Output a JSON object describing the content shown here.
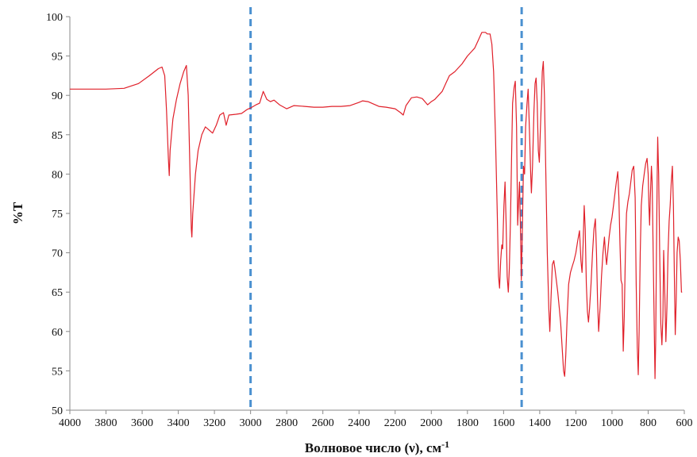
{
  "chart_data": {
    "type": "line",
    "title": "",
    "xlabel": "Волновое число (ν), см",
    "xlabel_sup": "-1",
    "ylabel": "%T",
    "xlim": [
      4000,
      600
    ],
    "ylim": [
      50,
      100
    ],
    "x_ticks": [
      "4000",
      "3800",
      "3600",
      "3400",
      "3200",
      "3000",
      "2800",
      "2600",
      "2400",
      "2200",
      "2000",
      "1800",
      "1600",
      "1400",
      "1200",
      "1000",
      "800",
      "600"
    ],
    "y_ticks": [
      "50",
      "55",
      "60",
      "65",
      "70",
      "75",
      "80",
      "85",
      "90",
      "95",
      "100"
    ],
    "grid": false,
    "legend": "none",
    "reference_lines": [
      {
        "x": 3000,
        "style": "dashed",
        "color": "#4a90d0"
      },
      {
        "x": 1500,
        "style": "dashed",
        "color": "#4a90d0"
      }
    ],
    "series": [
      {
        "color": "#e0202a",
        "points": [
          [
            4000,
            90.8
          ],
          [
            3900,
            90.8
          ],
          [
            3800,
            90.8
          ],
          [
            3700,
            90.9
          ],
          [
            3620,
            91.5
          ],
          [
            3560,
            92.5
          ],
          [
            3510,
            93.4
          ],
          [
            3490,
            93.6
          ],
          [
            3475,
            92.5
          ],
          [
            3465,
            88
          ],
          [
            3455,
            82
          ],
          [
            3450,
            79.8
          ],
          [
            3445,
            83
          ],
          [
            3430,
            87
          ],
          [
            3410,
            89.5
          ],
          [
            3390,
            91.5
          ],
          [
            3370,
            93
          ],
          [
            3355,
            93.8
          ],
          [
            3345,
            90
          ],
          [
            3335,
            80
          ],
          [
            3328,
            73
          ],
          [
            3325,
            72
          ],
          [
            3320,
            75
          ],
          [
            3305,
            80
          ],
          [
            3290,
            83
          ],
          [
            3270,
            85
          ],
          [
            3250,
            86
          ],
          [
            3230,
            85.6
          ],
          [
            3210,
            85.2
          ],
          [
            3190,
            86.2
          ],
          [
            3170,
            87.5
          ],
          [
            3150,
            87.8
          ],
          [
            3135,
            86.2
          ],
          [
            3120,
            87.5
          ],
          [
            3080,
            87.6
          ],
          [
            3050,
            87.7
          ],
          [
            3020,
            88.2
          ],
          [
            3000,
            88.4
          ],
          [
            2970,
            88.8
          ],
          [
            2950,
            89
          ],
          [
            2930,
            90.5
          ],
          [
            2910,
            89.5
          ],
          [
            2890,
            89.2
          ],
          [
            2870,
            89.4
          ],
          [
            2840,
            88.8
          ],
          [
            2800,
            88.3
          ],
          [
            2760,
            88.7
          ],
          [
            2700,
            88.6
          ],
          [
            2650,
            88.5
          ],
          [
            2600,
            88.5
          ],
          [
            2550,
            88.6
          ],
          [
            2500,
            88.6
          ],
          [
            2450,
            88.7
          ],
          [
            2400,
            89.1
          ],
          [
            2380,
            89.3
          ],
          [
            2350,
            89.2
          ],
          [
            2320,
            88.9
          ],
          [
            2290,
            88.6
          ],
          [
            2250,
            88.5
          ],
          [
            2200,
            88.3
          ],
          [
            2170,
            87.8
          ],
          [
            2155,
            87.5
          ],
          [
            2140,
            88.7
          ],
          [
            2110,
            89.7
          ],
          [
            2080,
            89.8
          ],
          [
            2050,
            89.6
          ],
          [
            2020,
            88.8
          ],
          [
            2000,
            89.2
          ],
          [
            1980,
            89.5
          ],
          [
            1960,
            90
          ],
          [
            1940,
            90.5
          ],
          [
            1920,
            91.5
          ],
          [
            1900,
            92.5
          ],
          [
            1870,
            93
          ],
          [
            1850,
            93.5
          ],
          [
            1830,
            94
          ],
          [
            1800,
            95
          ],
          [
            1780,
            95.5
          ],
          [
            1760,
            96
          ],
          [
            1740,
            97
          ],
          [
            1720,
            98
          ],
          [
            1700,
            98
          ],
          [
            1690,
            97.8
          ],
          [
            1675,
            97.8
          ],
          [
            1665,
            96.5
          ],
          [
            1655,
            93
          ],
          [
            1645,
            85
          ],
          [
            1635,
            75
          ],
          [
            1628,
            67
          ],
          [
            1622,
            65.5
          ],
          [
            1616,
            69
          ],
          [
            1610,
            71
          ],
          [
            1605,
            70.5
          ],
          [
            1598,
            76
          ],
          [
            1592,
            79
          ],
          [
            1586,
            74
          ],
          [
            1580,
            67
          ],
          [
            1574,
            65
          ],
          [
            1568,
            68
          ],
          [
            1562,
            74
          ],
          [
            1556,
            82
          ],
          [
            1550,
            89
          ],
          [
            1542,
            91
          ],
          [
            1535,
            91.8
          ],
          [
            1528,
            86
          ],
          [
            1522,
            73.5
          ],
          [
            1516,
            77
          ],
          [
            1512,
            79
          ],
          [
            1506,
            72
          ],
          [
            1502,
            66.5
          ],
          [
            1496,
            73
          ],
          [
            1490,
            81
          ],
          [
            1484,
            80
          ],
          [
            1478,
            86
          ],
          [
            1470,
            89
          ],
          [
            1464,
            90.8
          ],
          [
            1456,
            85
          ],
          [
            1450,
            80
          ],
          [
            1446,
            77.6
          ],
          [
            1440,
            81
          ],
          [
            1432,
            88
          ],
          [
            1426,
            91.5
          ],
          [
            1420,
            92.2
          ],
          [
            1414,
            89
          ],
          [
            1408,
            83
          ],
          [
            1402,
            81.5
          ],
          [
            1396,
            86
          ],
          [
            1390,
            90
          ],
          [
            1386,
            93
          ],
          [
            1380,
            94.3
          ],
          [
            1374,
            90
          ],
          [
            1366,
            80
          ],
          [
            1358,
            70
          ],
          [
            1350,
            63
          ],
          [
            1344,
            60
          ],
          [
            1338,
            64
          ],
          [
            1330,
            68.5
          ],
          [
            1322,
            69
          ],
          [
            1316,
            68
          ],
          [
            1308,
            66.5
          ],
          [
            1300,
            65
          ],
          [
            1292,
            63
          ],
          [
            1284,
            61
          ],
          [
            1276,
            58
          ],
          [
            1268,
            55
          ],
          [
            1262,
            54.3
          ],
          [
            1256,
            57
          ],
          [
            1248,
            62
          ],
          [
            1240,
            66
          ],
          [
            1230,
            67.5
          ],
          [
            1220,
            68.3
          ],
          [
            1210,
            69
          ],
          [
            1200,
            70
          ],
          [
            1190,
            71.5
          ],
          [
            1180,
            72.8
          ],
          [
            1172,
            69
          ],
          [
            1166,
            67.5
          ],
          [
            1160,
            71
          ],
          [
            1154,
            76
          ],
          [
            1148,
            73
          ],
          [
            1142,
            66
          ],
          [
            1136,
            62.5
          ],
          [
            1130,
            61.2
          ],
          [
            1124,
            63
          ],
          [
            1116,
            66
          ],
          [
            1108,
            70
          ],
          [
            1100,
            73
          ],
          [
            1092,
            74.3
          ],
          [
            1086,
            70
          ],
          [
            1080,
            64
          ],
          [
            1074,
            60
          ],
          [
            1066,
            63
          ],
          [
            1058,
            67
          ],
          [
            1050,
            70
          ],
          [
            1042,
            72
          ],
          [
            1036,
            70
          ],
          [
            1030,
            68.5
          ],
          [
            1024,
            70
          ],
          [
            1016,
            72
          ],
          [
            1008,
            73.5
          ],
          [
            1000,
            74.5
          ],
          [
            992,
            76
          ],
          [
            984,
            77.5
          ],
          [
            976,
            79
          ],
          [
            968,
            80.3
          ],
          [
            962,
            77
          ],
          [
            956,
            71
          ],
          [
            950,
            66.5
          ],
          [
            944,
            66
          ],
          [
            938,
            57.5
          ],
          [
            932,
            62
          ],
          [
            926,
            70
          ],
          [
            920,
            75
          ],
          [
            912,
            76.5
          ],
          [
            904,
            77.5
          ],
          [
            896,
            79
          ],
          [
            888,
            80.5
          ],
          [
            880,
            81
          ],
          [
            872,
            77
          ],
          [
            866,
            66
          ],
          [
            860,
            58
          ],
          [
            855,
            54.5
          ],
          [
            850,
            60
          ],
          [
            844,
            70
          ],
          [
            838,
            76
          ],
          [
            830,
            78.5
          ],
          [
            822,
            80
          ],
          [
            814,
            81.3
          ],
          [
            806,
            82
          ],
          [
            800,
            80
          ],
          [
            796,
            76
          ],
          [
            792,
            73.5
          ],
          [
            788,
            77
          ],
          [
            782,
            81
          ],
          [
            778,
            79
          ],
          [
            772,
            70
          ],
          [
            766,
            60
          ],
          [
            762,
            54
          ],
          [
            758,
            59
          ],
          [
            754,
            70
          ],
          [
            750,
            80
          ],
          [
            747,
            84.7
          ],
          [
            742,
            80
          ],
          [
            736,
            70
          ],
          [
            730,
            61
          ],
          [
            724,
            58.3
          ],
          [
            718,
            62
          ],
          [
            714,
            70.3
          ],
          [
            708,
            65
          ],
          [
            702,
            58.7
          ],
          [
            696,
            63
          ],
          [
            690,
            70
          ],
          [
            684,
            74
          ],
          [
            678,
            76
          ],
          [
            672,
            79
          ],
          [
            666,
            81
          ],
          [
            660,
            76
          ],
          [
            655,
            67
          ],
          [
            650,
            59.6
          ],
          [
            645,
            64
          ],
          [
            640,
            70
          ],
          [
            634,
            72
          ],
          [
            628,
            71.5
          ],
          [
            622,
            69
          ],
          [
            616,
            65
          ],
          [
            612,
            65
          ]
        ]
      }
    ]
  }
}
